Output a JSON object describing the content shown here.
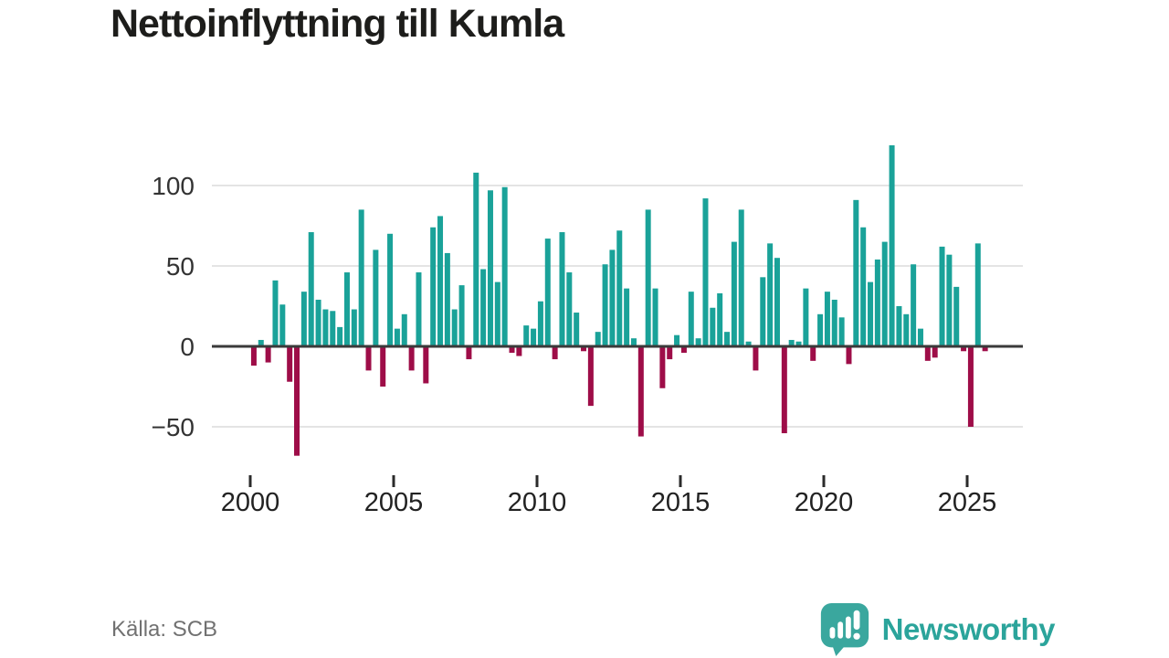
{
  "title": "Nettoinflyttning till Kumla",
  "source": "Källa: SCB",
  "logo": {
    "brand": "Newsworthy",
    "icon": "newsworthy-speech-bubble-bar-chart-icon"
  },
  "colors": {
    "positive": "#1aa299",
    "negative": "#9e0d48",
    "zero_line": "#3a3a3a",
    "gridline": "#e4e4e4",
    "axis_text": "#333333",
    "tick_mark": "#2b2b2b",
    "title_text": "#1d1d1b",
    "source_text": "#717171",
    "brand_teal": "#2ba49b"
  },
  "chart_data": {
    "type": "bar",
    "title": "Nettoinflyttning till Kumla",
    "xlabel": "",
    "ylabel": "",
    "frequency": "quarterly",
    "start_period": "2000Q1",
    "x_ticks": [
      2000,
      2005,
      2010,
      2015,
      2020,
      2025
    ],
    "y_ticks": [
      100,
      50,
      0,
      -50
    ],
    "ylim": [
      -75,
      135
    ],
    "grid": "horizontal",
    "legend": "none",
    "values": [
      -12,
      4,
      -10,
      41,
      26,
      -22,
      -68,
      34,
      71,
      29,
      23,
      22,
      12,
      46,
      23,
      85,
      -15,
      60,
      -25,
      70,
      11,
      20,
      -15,
      46,
      -23,
      74,
      81,
      58,
      23,
      38,
      -8,
      108,
      48,
      97,
      40,
      99,
      -4,
      -6,
      13,
      11,
      28,
      67,
      -8,
      71,
      46,
      21,
      -3,
      -37,
      9,
      51,
      60,
      72,
      36,
      5,
      -56,
      85,
      36,
      -26,
      -8,
      7,
      -4,
      34,
      5,
      92,
      24,
      33,
      9,
      65,
      85,
      3,
      -15,
      43,
      64,
      55,
      -54,
      4,
      3,
      36,
      -9,
      20,
      34,
      29,
      18,
      -11,
      91,
      74,
      40,
      54,
      65,
      125,
      25,
      20,
      51,
      11,
      -9,
      -7,
      62,
      57,
      37,
      -3,
      -50,
      64,
      -3
    ]
  }
}
